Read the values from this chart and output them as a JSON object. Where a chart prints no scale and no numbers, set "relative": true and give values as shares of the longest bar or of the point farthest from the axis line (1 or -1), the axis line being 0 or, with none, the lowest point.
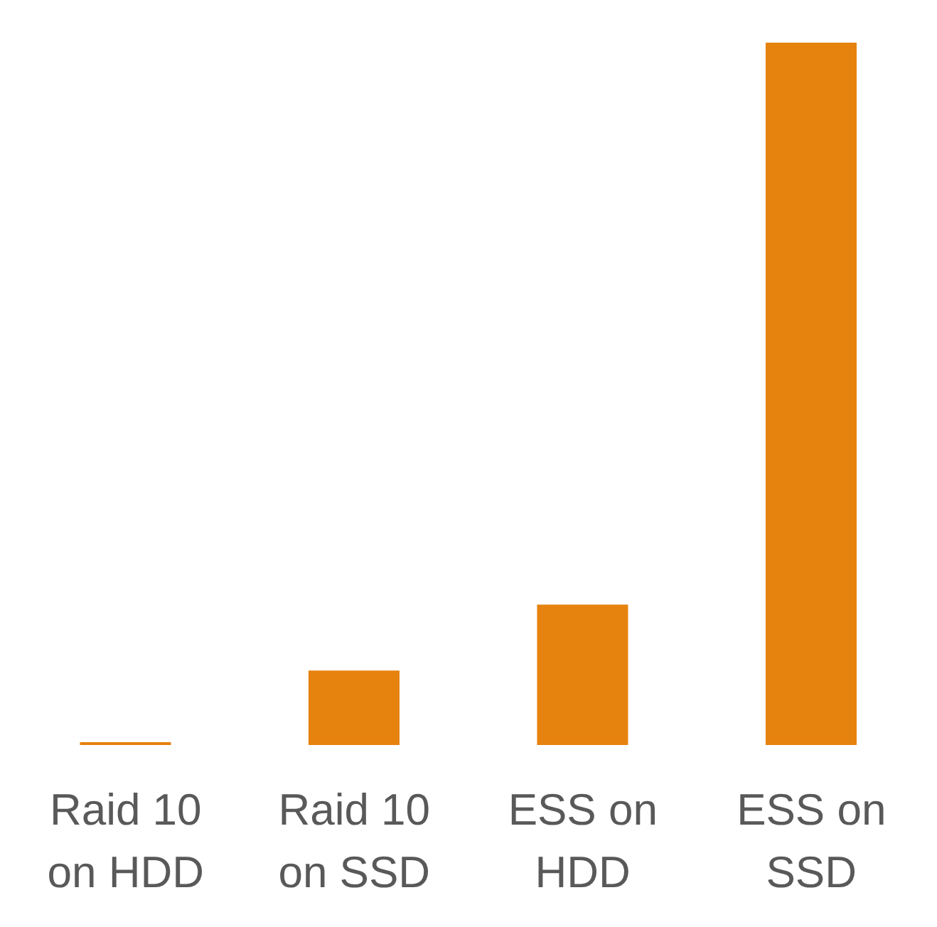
{
  "chart_data": {
    "type": "bar",
    "relative": true,
    "categories": [
      "Raid 10 on HDD",
      "Raid 10 on SSD",
      "ESS on HDD",
      "ESS on SSD"
    ],
    "values": [
      0.0,
      0.106,
      0.2,
      1
    ],
    "color": "#e6820e",
    "grid": false,
    "legend": false
  }
}
